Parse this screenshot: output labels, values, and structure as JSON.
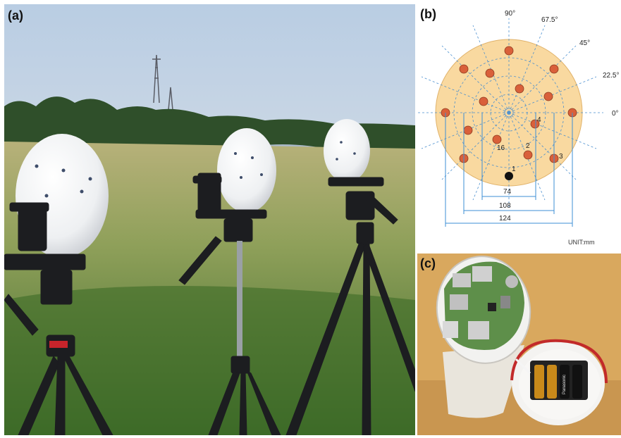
{
  "panels": {
    "a": {
      "label": "(a)"
    },
    "b": {
      "label": "(b)",
      "angles": [
        "90°",
        "67.5°",
        "45°",
        "22.5°",
        "0°"
      ],
      "sensor_numbers": [
        "1",
        "2",
        "3",
        "4",
        "16"
      ],
      "dimensions": [
        "74",
        "108",
        "124"
      ],
      "unit": "UNIT:mm"
    },
    "c": {
      "label": "(c)",
      "battery_brand": "Panasonic"
    }
  },
  "colors": {
    "disk_fill": "#f9d9a0",
    "sensor_dot": "#d9603a",
    "dim_line": "#3d8fd6",
    "grid": "#4a8fcf"
  }
}
